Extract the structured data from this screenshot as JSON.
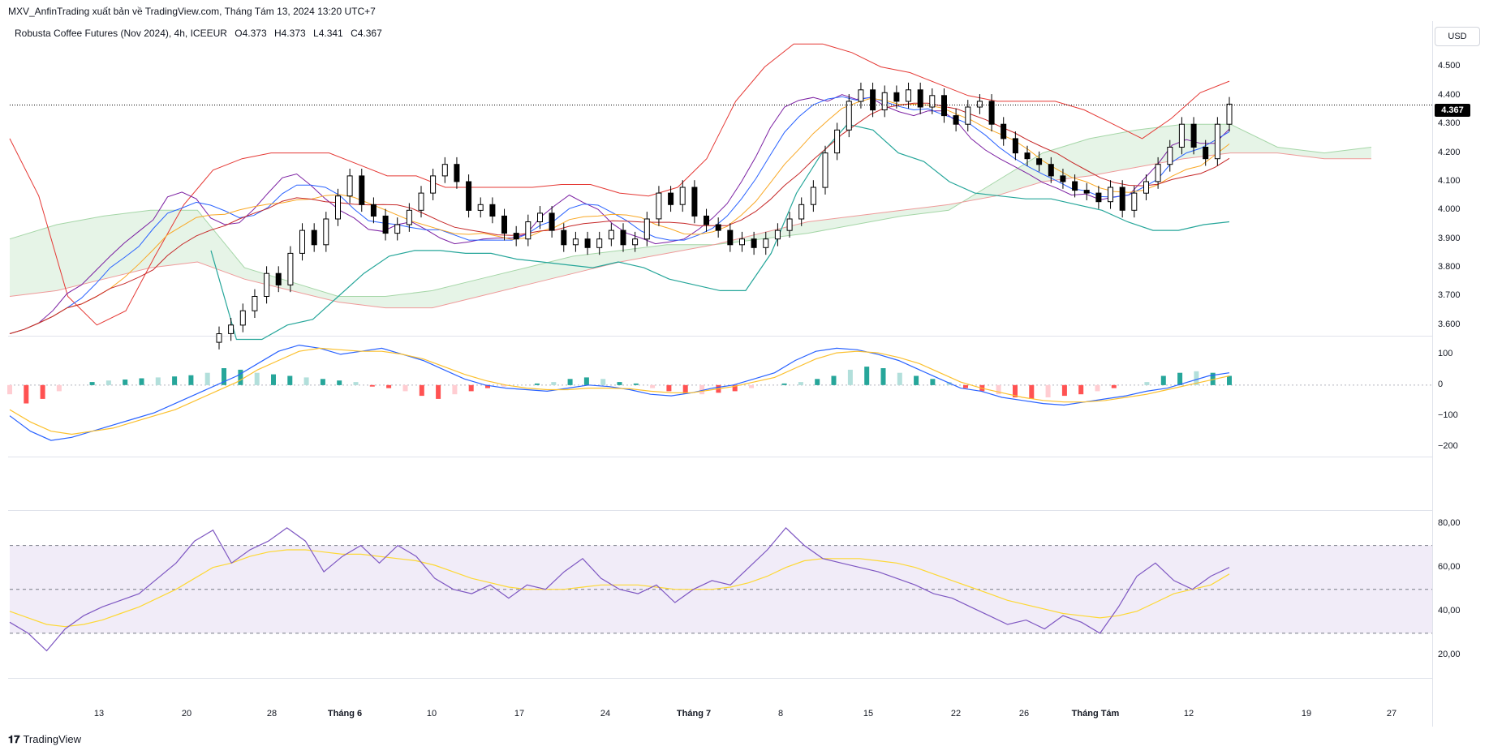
{
  "header": {
    "publisher": "MXV_AnfinTrading xuất bản về TradingView.com, Tháng Tám 13, 2024 13:20 UTC+7"
  },
  "symbol": {
    "name": "Robusta Coffee Futures (Nov 2024), 4h, ICEEUR",
    "open": "O4.373",
    "high": "H4.373",
    "low": "L4.341",
    "close": "C4.367"
  },
  "currency_button": "USD",
  "last_price_tag": "4.367",
  "price_axis": [
    "4.500",
    "4.400",
    "4.300",
    "4.200",
    "4.100",
    "4.000",
    "3.900",
    "3.800",
    "3.700",
    "3.600"
  ],
  "macd_axis": [
    "100",
    "0",
    "−100",
    "−200"
  ],
  "rsi_axis": [
    "80,00",
    "60,00",
    "40,00",
    "20,00"
  ],
  "time_axis": [
    "13",
    "20",
    "28",
    "Tháng 6",
    "10",
    "17",
    "24",
    "Tháng 7",
    "8",
    "15",
    "22",
    "26",
    "Tháng Tám",
    "12",
    "19",
    "27"
  ],
  "footer_logo": "TradingView",
  "colors": {
    "up": "#ffffff",
    "down": "#000000",
    "bb_upper": "#e53935",
    "bb_lower": "#26a69a",
    "cloud_green": "#a5d6a7",
    "cloud_red": "#ef9a9a",
    "macd": "#2962ff",
    "signal": "#fbc02d",
    "rsi": "#7e57c2",
    "rsi_band": "#ede7f6"
  },
  "chart_data": [
    {
      "type": "candlestick",
      "title": "Robusta Coffee Futures (Nov 2024), 4h, ICEEUR",
      "ylim": [
        3.56,
        4.62
      ],
      "x_ticks": [
        "13",
        "20",
        "28",
        "Tháng 6",
        "10",
        "17",
        "24",
        "Tháng 7",
        "8",
        "15",
        "22",
        "26",
        "Tháng Tám",
        "12",
        "19",
        "27"
      ],
      "last_close": 4.367,
      "closes": [
        3.57,
        3.6,
        3.65,
        3.7,
        3.78,
        3.74,
        3.85,
        3.93,
        3.88,
        3.97,
        4.05,
        4.12,
        4.02,
        3.98,
        3.92,
        3.95,
        4.0,
        4.06,
        4.12,
        4.16,
        4.1,
        4.0,
        4.02,
        3.98,
        3.92,
        3.9,
        3.96,
        3.99,
        3.93,
        3.88,
        3.9,
        3.87,
        3.9,
        3.93,
        3.88,
        3.9,
        3.97,
        4.06,
        4.02,
        4.08,
        3.98,
        3.95,
        3.93,
        3.88,
        3.9,
        3.87,
        3.9,
        3.93,
        3.97,
        4.02,
        4.08,
        4.2,
        4.28,
        4.38,
        4.42,
        4.35,
        4.41,
        4.38,
        4.42,
        4.36,
        4.4,
        4.33,
        4.3,
        4.36,
        4.38,
        4.3,
        4.25,
        4.2,
        4.18,
        4.16,
        4.12,
        4.1,
        4.07,
        4.06,
        4.03,
        4.08,
        4.0,
        4.06,
        4.1,
        4.16,
        4.22,
        4.3,
        4.22,
        4.18,
        4.3,
        4.37
      ],
      "bollinger_upper": [
        4.25,
        4.05,
        3.7,
        3.6,
        3.65,
        3.84,
        4.02,
        4.14,
        4.18,
        4.2,
        4.2,
        4.2,
        4.16,
        4.12,
        4.12,
        4.08,
        4.08,
        4.08,
        4.08,
        4.09,
        4.09,
        4.06,
        4.05,
        4.08,
        4.18,
        4.38,
        4.5,
        4.58,
        4.58,
        4.55,
        4.5,
        4.48,
        4.44,
        4.4,
        4.38,
        4.38,
        4.38,
        4.35,
        4.3,
        4.25,
        4.32,
        4.41,
        4.45
      ],
      "bollinger_lower": [
        3.86,
        3.55,
        3.55,
        3.6,
        3.62,
        3.7,
        3.78,
        3.84,
        3.86,
        3.86,
        3.85,
        3.85,
        3.83,
        3.82,
        3.81,
        3.8,
        3.82,
        3.8,
        3.76,
        3.74,
        3.72,
        3.72,
        3.85,
        4.06,
        4.2,
        4.3,
        4.28,
        4.2,
        4.17,
        4.1,
        4.06,
        4.05,
        4.04,
        4.04,
        4.02,
        4.0,
        3.96,
        3.93,
        3.93,
        3.95,
        3.96
      ],
      "series_names": [
        "Candles",
        "Bollinger Bands",
        "Ichimoku Cloud",
        "Moving Averages"
      ]
    },
    {
      "type": "macd",
      "ylim": [
        -230,
        150
      ],
      "y_ticks": [
        100,
        0,
        -100,
        -200
      ],
      "histogram": [
        -30,
        -60,
        -45,
        -20,
        0,
        10,
        15,
        18,
        22,
        25,
        28,
        32,
        40,
        55,
        50,
        40,
        35,
        30,
        25,
        20,
        15,
        10,
        -5,
        -10,
        -20,
        -35,
        -45,
        -30,
        -20,
        -10,
        -5,
        0,
        5,
        10,
        20,
        25,
        20,
        10,
        5,
        -10,
        -20,
        -28,
        -30,
        -25,
        -20,
        -10,
        0,
        5,
        10,
        20,
        30,
        50,
        60,
        55,
        40,
        30,
        20,
        10,
        -10,
        -20,
        -30,
        -40,
        -45,
        -40,
        -35,
        -30,
        -20,
        -10,
        0,
        10,
        30,
        40,
        45,
        40,
        30
      ],
      "macd_line": [
        -100,
        -150,
        -180,
        -170,
        -150,
        -130,
        -110,
        -90,
        -60,
        -30,
        0,
        30,
        70,
        110,
        130,
        120,
        100,
        110,
        120,
        100,
        80,
        50,
        20,
        0,
        -10,
        -15,
        -20,
        -10,
        0,
        -5,
        -15,
        -30,
        -35,
        -25,
        -10,
        0,
        20,
        40,
        80,
        110,
        120,
        115,
        100,
        80,
        50,
        20,
        -10,
        -20,
        -40,
        -50,
        -60,
        -65,
        -55,
        -45,
        -35,
        -20,
        -10,
        10,
        30,
        40
      ],
      "signal_line": [
        -80,
        -120,
        -150,
        -160,
        -150,
        -140,
        -120,
        -100,
        -80,
        -50,
        -20,
        10,
        50,
        80,
        110,
        120,
        115,
        110,
        110,
        100,
        85,
        60,
        35,
        15,
        0,
        -10,
        -15,
        -15,
        -10,
        -10,
        -12,
        -20,
        -25,
        -25,
        -15,
        -5,
        10,
        25,
        55,
        85,
        105,
        110,
        105,
        90,
        70,
        40,
        10,
        -10,
        -25,
        -40,
        -50,
        -55,
        -55,
        -50,
        -40,
        -30,
        -15,
        0,
        15,
        30
      ]
    },
    {
      "type": "line",
      "name": "RSI",
      "ylim": [
        10,
        85
      ],
      "y_ticks": [
        80,
        60,
        40,
        20
      ],
      "bands": [
        30,
        50,
        70
      ],
      "values": [
        35,
        30,
        22,
        32,
        38,
        42,
        45,
        48,
        55,
        62,
        72,
        77,
        62,
        68,
        72,
        78,
        72,
        58,
        65,
        70,
        62,
        70,
        65,
        55,
        50,
        48,
        52,
        46,
        52,
        50,
        58,
        64,
        55,
        50,
        48,
        52,
        44,
        50,
        54,
        52,
        60,
        68,
        78,
        70,
        64,
        62,
        60,
        58,
        55,
        52,
        48,
        46,
        42,
        38,
        34,
        36,
        32,
        38,
        35,
        30,
        42,
        56,
        62,
        54,
        50,
        56,
        60
      ],
      "ma_values": [
        40,
        37,
        34,
        33,
        34,
        36,
        39,
        42,
        46,
        50,
        55,
        60,
        62,
        65,
        67,
        68,
        68,
        67,
        66,
        66,
        65,
        64,
        63,
        61,
        58,
        55,
        53,
        51,
        50,
        50,
        50,
        51,
        52,
        52,
        52,
        51,
        50,
        50,
        50,
        51,
        53,
        56,
        60,
        63,
        64,
        64,
        64,
        63,
        62,
        60,
        57,
        54,
        51,
        48,
        45,
        43,
        41,
        39,
        38,
        37,
        38,
        40,
        44,
        48,
        50,
        52,
        57
      ]
    }
  ]
}
